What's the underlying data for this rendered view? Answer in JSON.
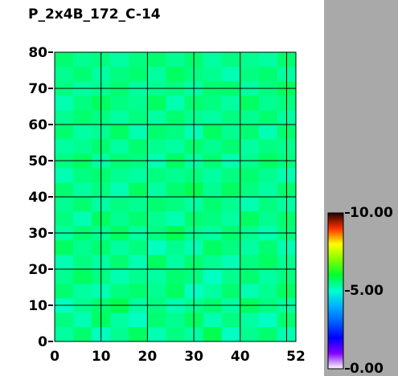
{
  "chart_data": {
    "type": "heatmap",
    "title": "P_2x4B_172_C-14",
    "xbins": [
      0,
      4,
      8,
      12,
      16,
      20,
      24,
      28,
      32,
      36,
      40,
      44,
      48,
      52
    ],
    "ybins": [
      0,
      4,
      8,
      12,
      16,
      20,
      24,
      28,
      32,
      36,
      40,
      44,
      48,
      52,
      56,
      60,
      64,
      68,
      72,
      76,
      80
    ],
    "z": [
      [
        5.3,
        5.6,
        5.1,
        5.4,
        5.7,
        5.2,
        5.5,
        5.3,
        5.8,
        5.1,
        5.4,
        5.6,
        5.2
      ],
      [
        5.5,
        5.2,
        5.7,
        5.3,
        5.1,
        5.6,
        5.4,
        5.7,
        5.2,
        5.5,
        5.3,
        5.1,
        5.6
      ],
      [
        5.1,
        5.4,
        5.6,
        5.8,
        5.3,
        5.5,
        5.2,
        5.4,
        5.6,
        5.3,
        5.7,
        5.5,
        5.3
      ],
      [
        5.6,
        5.3,
        5.2,
        5.5,
        5.6,
        5.4,
        5.7,
        5.1,
        5.3,
        5.6,
        5.2,
        5.4,
        5.7
      ],
      [
        5.4,
        5.7,
        5.5,
        5.2,
        5.4,
        5.3,
        5.6,
        5.5,
        5.1,
        5.4,
        5.6,
        5.3,
        5.5
      ],
      [
        5.2,
        5.5,
        5.3,
        5.6,
        5.2,
        5.7,
        5.3,
        5.6,
        5.4,
        5.2,
        5.5,
        5.7,
        5.4
      ],
      [
        5.7,
        5.4,
        5.6,
        5.3,
        5.5,
        5.1,
        5.4,
        5.2,
        5.7,
        5.5,
        5.3,
        5.6,
        5.2
      ],
      [
        5.3,
        5.6,
        5.4,
        5.7,
        5.3,
        5.5,
        5.8,
        5.4,
        5.3,
        5.6,
        5.4,
        5.2,
        5.5
      ],
      [
        5.5,
        5.2,
        5.7,
        5.4,
        5.6,
        5.4,
        5.2,
        5.6,
        5.5,
        5.3,
        5.7,
        5.4,
        5.6
      ],
      [
        5.4,
        5.6,
        5.3,
        5.5,
        5.4,
        5.6,
        5.5,
        5.3,
        5.6,
        5.4,
        5.2,
        5.5,
        5.3
      ],
      [
        5.6,
        5.3,
        5.5,
        5.2,
        5.7,
        5.3,
        5.6,
        5.8,
        5.4,
        5.7,
        5.5,
        5.3,
        5.6
      ],
      [
        5.2,
        5.5,
        5.6,
        5.4,
        5.3,
        5.5,
        5.4,
        5.5,
        5.3,
        5.5,
        5.6,
        5.4,
        5.2
      ],
      [
        5.5,
        5.7,
        5.3,
        5.6,
        5.5,
        5.2,
        5.7,
        5.3,
        5.6,
        5.2,
        5.4,
        5.7,
        5.5
      ],
      [
        5.3,
        5.4,
        5.6,
        5.3,
        5.6,
        5.4,
        5.3,
        5.6,
        5.4,
        5.6,
        5.3,
        5.5,
        5.4
      ],
      [
        5.6,
        5.3,
        5.4,
        5.7,
        5.2,
        5.6,
        5.5,
        5.2,
        5.7,
        5.4,
        5.6,
        5.2,
        5.6
      ],
      [
        5.4,
        5.6,
        5.5,
        5.3,
        5.5,
        5.3,
        5.6,
        5.4,
        5.3,
        5.5,
        5.4,
        5.6,
        5.3
      ],
      [
        5.2,
        5.5,
        5.7,
        5.5,
        5.4,
        5.7,
        5.2,
        5.6,
        5.5,
        5.3,
        5.7,
        5.4,
        5.5
      ],
      [
        5.5,
        5.3,
        5.4,
        5.6,
        5.3,
        5.4,
        5.5,
        5.3,
        5.6,
        5.6,
        5.3,
        5.5,
        5.7
      ],
      [
        5.4,
        5.6,
        5.3,
        5.5,
        5.6,
        5.3,
        5.7,
        5.5,
        5.4,
        5.2,
        5.5,
        5.6,
        5.3
      ],
      [
        5.6,
        5.4,
        5.5,
        5.3,
        5.5,
        5.6,
        5.4,
        5.6,
        5.3,
        5.5,
        5.4,
        5.3,
        5.6
      ]
    ],
    "xlim": [
      0,
      52
    ],
    "ylim": [
      0,
      80
    ],
    "xticks": [
      0,
      10,
      20,
      30,
      40,
      50,
      52
    ],
    "yticks": [
      0,
      10,
      20,
      30,
      40,
      50,
      60,
      70,
      80
    ],
    "xtick_labels_shown": [
      0,
      10,
      20,
      30,
      40,
      52
    ],
    "grid": true,
    "zlim": [
      0,
      10
    ],
    "zticks": [
      {
        "value": 0,
        "label": "0.00"
      },
      {
        "value": 5,
        "label": "5.00"
      },
      {
        "value": 10,
        "label": "10.00"
      }
    ],
    "colorscale": [
      "#ffffff",
      "#8000ff",
      "#0000ff",
      "#0060ff",
      "#00b0ff",
      "#00ffd0",
      "#00ff30",
      "#80ff00",
      "#ffff00",
      "#ff3000",
      "#200000"
    ]
  }
}
